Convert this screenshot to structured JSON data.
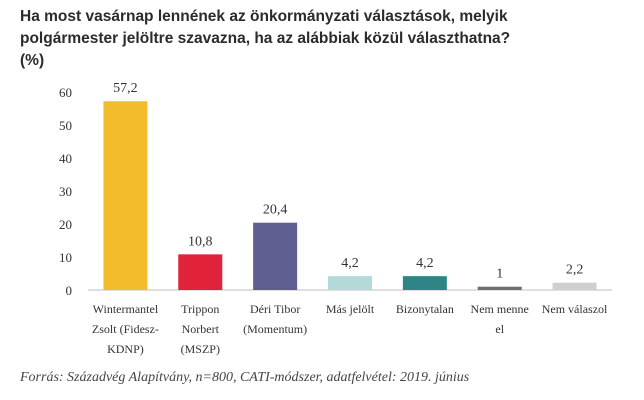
{
  "title_lines": [
    "Ha most vasárnap lennének az önkormányzati választások, melyik",
    "polgármester jelöltre szavazna, ha az alábbiak közül választhatna?",
    "(%)"
  ],
  "source": "Forrás: Századvég Alapítvány, n=800, CATI-módszer, adatfelvétel: 2019. június",
  "chart_data": {
    "type": "bar",
    "categories": [
      [
        "Wintermantel",
        "Zsolt (Fidesz-",
        "KDNP)"
      ],
      [
        "Trippon",
        "Norbert",
        "(MSZP)"
      ],
      [
        "Déri Tibor",
        "(Momentum)"
      ],
      [
        "Más jelölt"
      ],
      [
        "Bizonytalan"
      ],
      [
        "Nem menne",
        "el"
      ],
      [
        "Nem válaszol"
      ]
    ],
    "values": [
      57.2,
      10.8,
      20.4,
      4.2,
      4.2,
      1,
      2.2
    ],
    "value_labels": [
      "57,2",
      "10,8",
      "20,4",
      "4,2",
      "4,2",
      "1",
      "2,2"
    ],
    "colors": [
      "#f2bd2c",
      "#e0223a",
      "#5e5e90",
      "#b3dad8",
      "#2f8585",
      "#6e6e6e",
      "#cfcfcf"
    ],
    "ylim": [
      0,
      60
    ],
    "yticks": [
      0,
      10,
      20,
      30,
      40,
      50,
      60
    ],
    "grid": false,
    "legend": "none"
  }
}
